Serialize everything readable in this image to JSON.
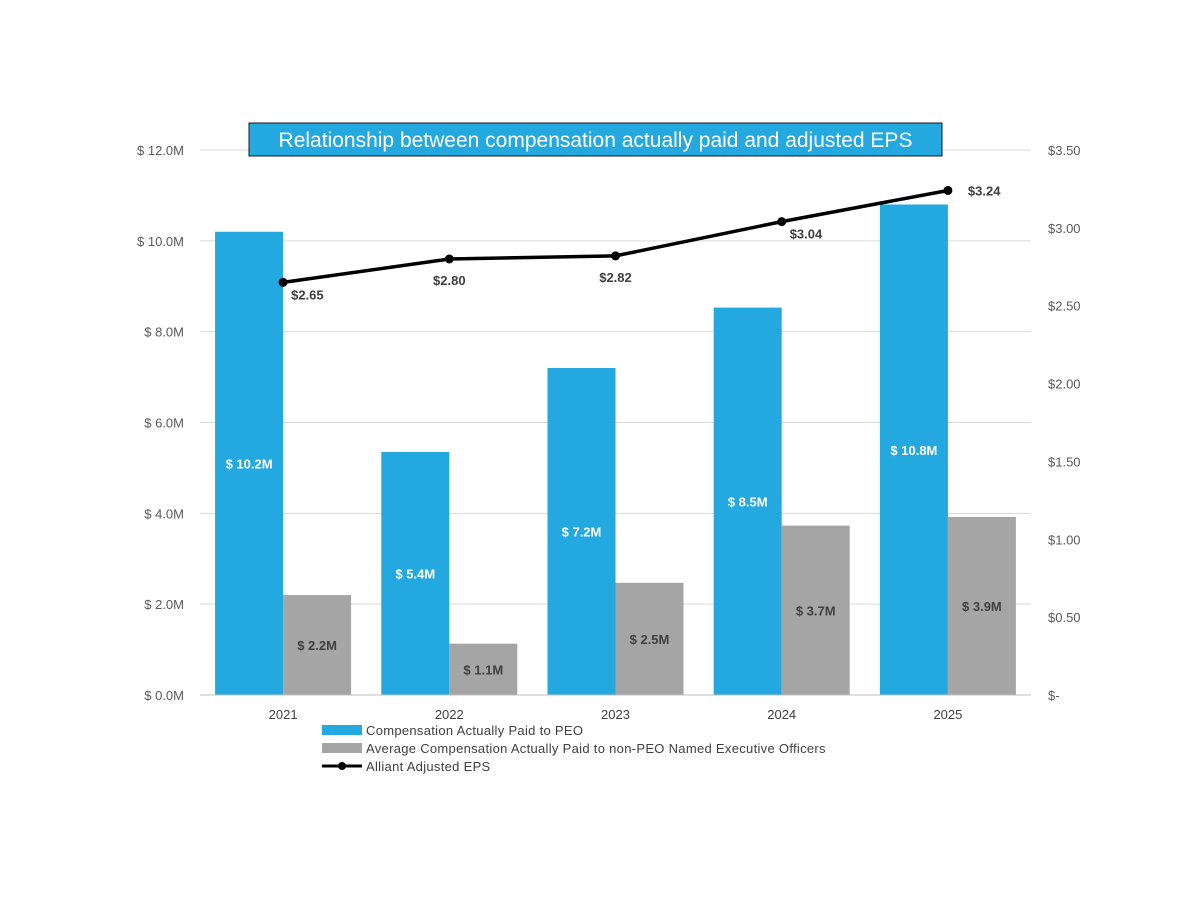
{
  "chart_data": {
    "type": "bar",
    "title": "Relationship between compensation actually paid and adjusted EPS",
    "categories": [
      "2021",
      "2022",
      "2023",
      "2024",
      "2025"
    ],
    "series": [
      {
        "name": "Compensation Actually Paid to PEO",
        "kind": "bar",
        "axis": "left",
        "color": "#23A8E0",
        "values": [
          10.2,
          5.35,
          7.2,
          8.53,
          10.8
        ],
        "labels": [
          "$ 10.2M",
          "$ 5.4M",
          "$ 7.2M",
          "$ 8.5M",
          "$ 10.8M"
        ]
      },
      {
        "name": "Average Compensation Actually Paid to non-PEO Named Executive Officers",
        "kind": "bar",
        "axis": "left",
        "color": "#A5A5A5",
        "values": [
          2.2,
          1.13,
          2.47,
          3.73,
          3.92
        ],
        "labels": [
          "$ 2.2M",
          "$ 1.1M",
          "$ 2.5M",
          "$ 3.7M",
          "$ 3.9M"
        ]
      },
      {
        "name": "Alliant Adjusted EPS",
        "kind": "line",
        "axis": "right",
        "color": "#000000",
        "values": [
          2.65,
          2.8,
          2.82,
          3.04,
          3.24
        ],
        "labels": [
          "$2.65",
          "$2.80",
          "$2.82",
          "$3.04",
          "$3.24"
        ]
      }
    ],
    "y_left": {
      "ylim": [
        0,
        12
      ],
      "ticks": [
        0,
        2,
        4,
        6,
        8,
        10,
        12
      ],
      "tick_labels": [
        "$ 0.0M",
        "$ 2.0M",
        "$ 4.0M",
        "$ 6.0M",
        "$ 8.0M",
        "$ 10.0M",
        "$ 12.0M"
      ]
    },
    "y_right": {
      "ylim": [
        0,
        3.5
      ],
      "ticks": [
        0,
        0.5,
        1,
        1.5,
        2,
        2.5,
        3,
        3.5
      ],
      "tick_labels": [
        "$-",
        "$0.50",
        "$1.00",
        "$1.50",
        "$2.00",
        "$2.50",
        "$3.00",
        "$3.50"
      ]
    },
    "grid": true,
    "legend_position": "bottom",
    "title_background": "#23A8E0"
  }
}
